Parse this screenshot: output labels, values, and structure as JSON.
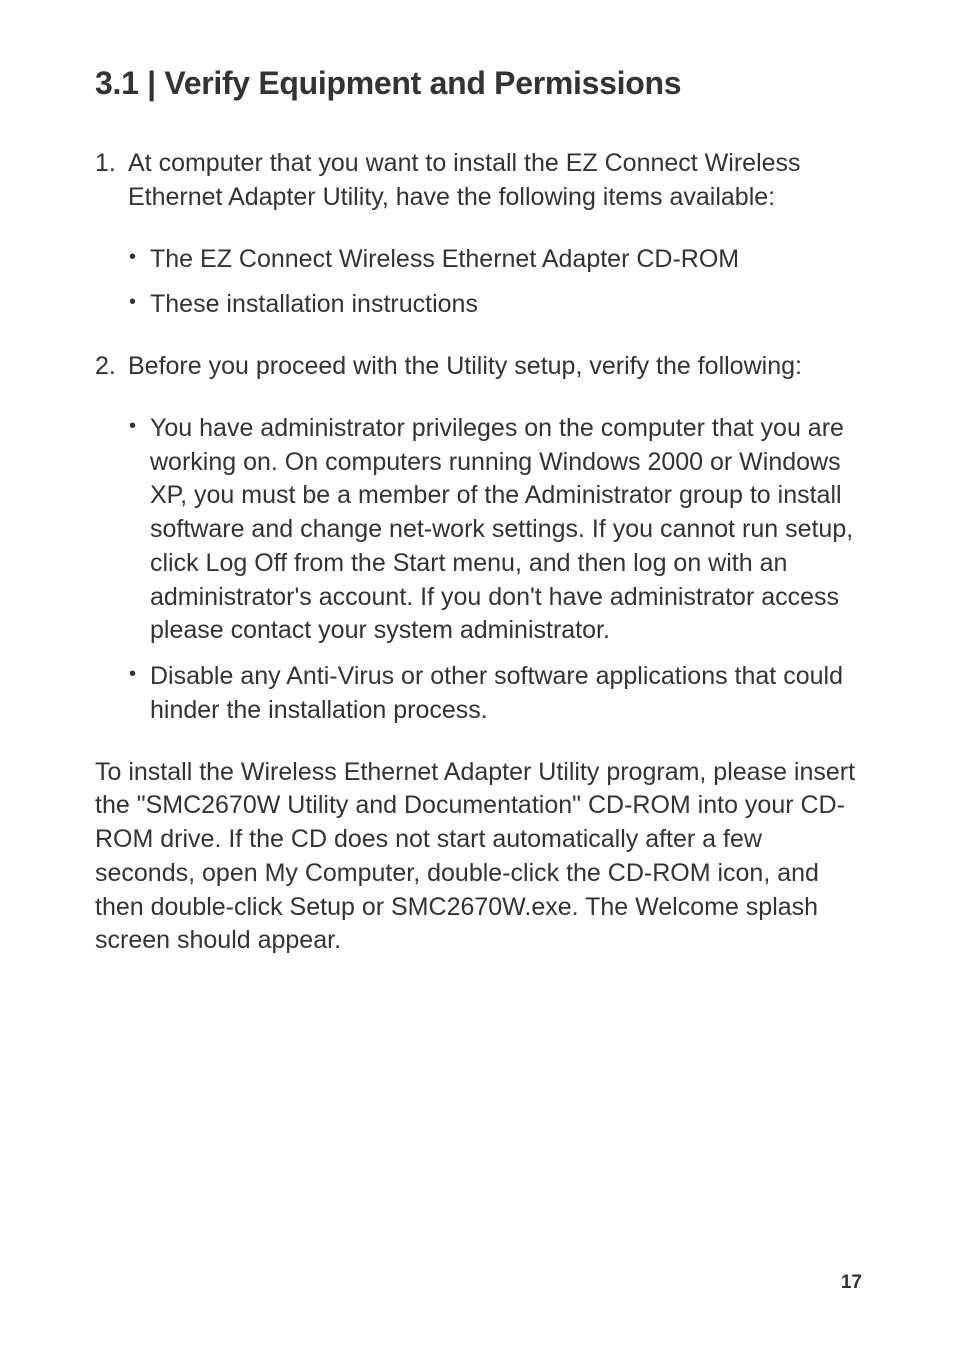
{
  "heading": "3.1 | Verify Equipment and Permissions",
  "list": {
    "items": [
      {
        "intro": "At computer that you want to install the EZ Connect Wireless Ethernet Adapter Utility, have the following items available:",
        "bullets": [
          "The EZ Connect Wireless Ethernet Adapter CD-ROM",
          "These installation instructions"
        ]
      },
      {
        "intro": "Before you proceed with the Utility setup, verify the following:",
        "bullets": [
          "You have administrator privileges on the computer that you are working on. On computers running Windows 2000 or Windows XP, you must be a member of the Administrator group to install software and change net-work settings. If you cannot run setup, click Log Off from the Start menu, and then log on with an administrator's account. If you don't have administrator access please contact your system administrator.",
          "Disable any Anti-Virus or other software applications that could hinder the installation process."
        ]
      }
    ]
  },
  "closing": "To install the Wireless Ethernet Adapter Utility program, please insert the \"SMC2670W Utility and Documentation\" CD-ROM into your CD-ROM drive. If the CD does not start automatically after a few seconds, open My Computer, double-click the CD-ROM icon, and then double-click Setup or SMC2670W.exe. The Welcome splash screen should appear.",
  "pageNumber": "17",
  "colors": {
    "text": "#333333",
    "background": "#ffffff"
  },
  "typography": {
    "heading_fontsize": 32,
    "body_fontsize": 25,
    "page_number_fontsize": 19,
    "font_family": "Myriad Pro"
  }
}
